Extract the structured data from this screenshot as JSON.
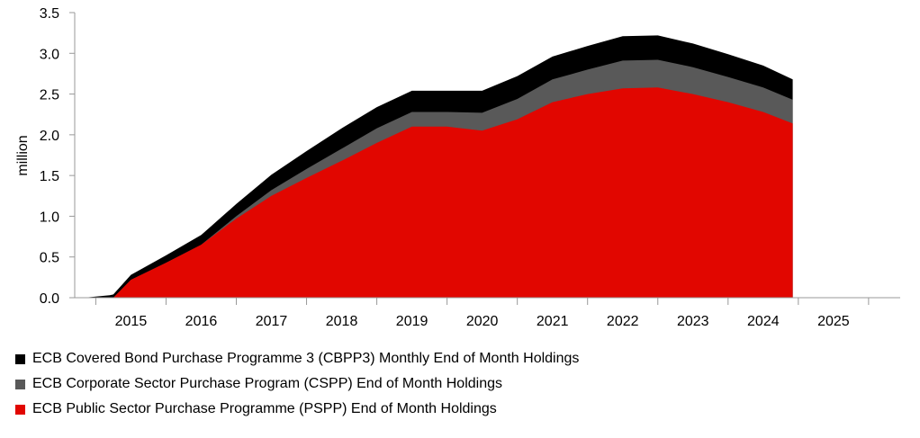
{
  "chart_data": {
    "type": "area",
    "ylabel": "million",
    "ylim": [
      0,
      3.5
    ],
    "yticks": [
      "0.0",
      "0.5",
      "1.0",
      "1.5",
      "2.0",
      "2.5",
      "3.0",
      "3.5"
    ],
    "xlim": [
      2014.2,
      2025.95
    ],
    "xticks": [
      "2015",
      "2016",
      "2017",
      "2018",
      "2019",
      "2020",
      "2021",
      "2022",
      "2023",
      "2024",
      "2025"
    ],
    "grid": false,
    "legend_position": "bottom-left",
    "stacked": true,
    "series": [
      {
        "name": "ECB Covered Bond Purchase Programme 3 (CBPP3) Monthly End of Month Holdings",
        "color": "#000000",
        "x": [
          2014.33,
          2014.7,
          2014.75,
          2015.0,
          2015.5,
          2016.0,
          2016.5,
          2017.0,
          2017.5,
          2018.0,
          2018.5,
          2019.0,
          2019.5,
          2020.0,
          2020.5,
          2021.0,
          2021.5,
          2022.0,
          2022.5,
          2023.0,
          2023.5,
          2024.0,
          2024.42
        ],
        "values": [
          0.0,
          0.03,
          0.04,
          0.06,
          0.09,
          0.12,
          0.15,
          0.19,
          0.22,
          0.25,
          0.26,
          0.26,
          0.26,
          0.27,
          0.28,
          0.28,
          0.29,
          0.3,
          0.3,
          0.29,
          0.28,
          0.27,
          0.25
        ]
      },
      {
        "name": "ECB Corporate Sector Purchase Program (CSPP) End of Month Holdings",
        "color": "#595959",
        "x": [
          2014.33,
          2014.7,
          2014.75,
          2015.0,
          2015.5,
          2016.0,
          2016.5,
          2017.0,
          2017.5,
          2018.0,
          2018.5,
          2019.0,
          2019.5,
          2020.0,
          2020.5,
          2021.0,
          2021.5,
          2022.0,
          2022.5,
          2023.0,
          2023.5,
          2024.0,
          2024.42
        ],
        "values": [
          0.0,
          0.0,
          0.0,
          0.0,
          0.0,
          0.0,
          0.03,
          0.07,
          0.11,
          0.15,
          0.18,
          0.18,
          0.18,
          0.22,
          0.25,
          0.28,
          0.3,
          0.34,
          0.34,
          0.33,
          0.31,
          0.3,
          0.29
        ]
      },
      {
        "name": "ECB Public Sector Purchase Programme (PSPP) End of Month Holdings",
        "color": "#e10600",
        "x": [
          2014.33,
          2014.7,
          2014.75,
          2015.0,
          2015.5,
          2016.0,
          2016.5,
          2017.0,
          2017.5,
          2018.0,
          2018.5,
          2019.0,
          2019.5,
          2020.0,
          2020.5,
          2021.0,
          2021.5,
          2022.0,
          2022.5,
          2023.0,
          2023.5,
          2024.0,
          2024.42
        ],
        "values": [
          0.0,
          0.0,
          0.0,
          0.22,
          0.43,
          0.65,
          0.97,
          1.25,
          1.47,
          1.68,
          1.9,
          2.1,
          2.1,
          2.05,
          2.19,
          2.4,
          2.5,
          2.57,
          2.58,
          2.5,
          2.4,
          2.28,
          2.14
        ]
      }
    ]
  }
}
